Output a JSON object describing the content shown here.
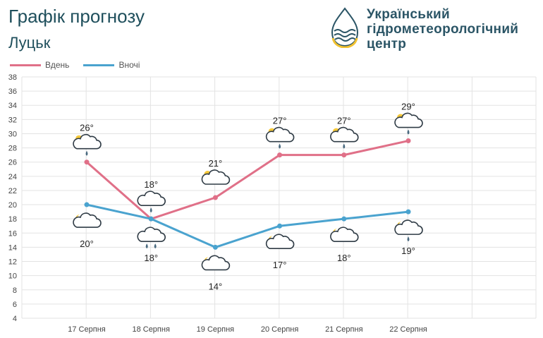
{
  "header": {
    "title": "Графік прогнозу",
    "city": "Луцьк",
    "org_lines": [
      "Український",
      "гідрометеорологічний",
      "центр"
    ]
  },
  "legend": [
    {
      "name": "Вдень",
      "color": "#e07088"
    },
    {
      "name": "Вночі",
      "color": "#4aa3cf"
    }
  ],
  "chart_data": {
    "type": "line",
    "categories": [
      "17 Серпня",
      "18 Серпня",
      "19 Серпня",
      "20 Серпня",
      "21 Серпня",
      "22 Серпня"
    ],
    "series": [
      {
        "name": "Вдень",
        "color": "#e07088",
        "values": [
          26,
          18,
          21,
          27,
          27,
          29
        ],
        "labels": [
          "26°",
          "18°",
          "21°",
          "27°",
          "27°",
          "29°"
        ],
        "icons": [
          "partly-cloudy-rain",
          "cloudy-rain",
          "partly-cloudy",
          "partly-cloudy-rain",
          "partly-cloudy-rain",
          "partly-cloudy-rain"
        ]
      },
      {
        "name": "Вночі",
        "color": "#4aa3cf",
        "values": [
          20,
          18,
          14,
          17,
          18,
          19
        ],
        "labels": [
          "20°",
          "18°",
          "14°",
          "17°",
          "18°",
          "19°"
        ],
        "icons": [
          "moon-cloudy",
          "cloudy-heavy-rain",
          "moon-cloudy",
          "moon-cloudy",
          "moon-cloudy",
          "moon-cloudy-rain"
        ]
      }
    ],
    "ylim": [
      4,
      38
    ],
    "yticks": [
      4,
      6,
      8,
      10,
      12,
      14,
      16,
      18,
      20,
      22,
      24,
      26,
      28,
      30,
      32,
      34,
      36,
      38
    ],
    "grid": true,
    "legend_position": "top-left"
  }
}
